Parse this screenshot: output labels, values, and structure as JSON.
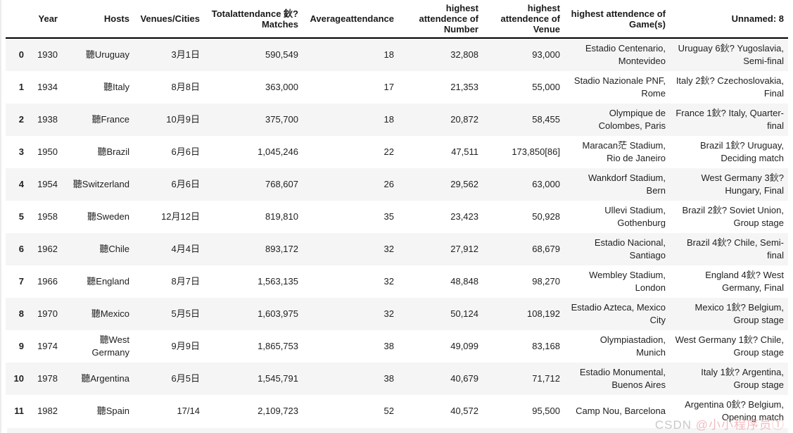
{
  "table": {
    "column_keys": [
      "index",
      "year",
      "hosts",
      "venues_cities",
      "total_attendance",
      "average_attendance",
      "highest_number",
      "highest_venue_attendance",
      "highest_venue",
      "game"
    ],
    "columns": [
      {
        "label": ""
      },
      {
        "label": "Year"
      },
      {
        "label": "Hosts"
      },
      {
        "label": "Venues/Cities"
      },
      {
        "label": "Totalattendance 鈥?Matches"
      },
      {
        "label": "Averageattendance"
      },
      {
        "label": "highest attendence of Number"
      },
      {
        "label": "highest attendence of Venue"
      },
      {
        "label": "highest attendence of Game(s)"
      },
      {
        "label": "Unnamed: 8"
      }
    ],
    "rows": [
      {
        "index": "0",
        "year": "1930",
        "hosts": "聽Uruguay",
        "venues_cities": "3月1日",
        "total_attendance": "590,549",
        "average_attendance": "18",
        "highest_number": "32,808",
        "highest_venue_attendance": "93,000",
        "highest_venue": "Estadio Centenario, Montevideo",
        "game": "Uruguay 6鈥? Yugoslavia, Semi-final"
      },
      {
        "index": "1",
        "year": "1934",
        "hosts": "聽Italy",
        "venues_cities": "8月8日",
        "total_attendance": "363,000",
        "average_attendance": "17",
        "highest_number": "21,353",
        "highest_venue_attendance": "55,000",
        "highest_venue": "Stadio Nazionale PNF, Rome",
        "game": "Italy 2鈥? Czechoslovakia, Final"
      },
      {
        "index": "2",
        "year": "1938",
        "hosts": "聽France",
        "venues_cities": "10月9日",
        "total_attendance": "375,700",
        "average_attendance": "18",
        "highest_number": "20,872",
        "highest_venue_attendance": "58,455",
        "highest_venue": "Olympique de Colombes, Paris",
        "game": "France 1鈥? Italy, Quarter-final"
      },
      {
        "index": "3",
        "year": "1950",
        "hosts": "聽Brazil",
        "venues_cities": "6月6日",
        "total_attendance": "1,045,246",
        "average_attendance": "22",
        "highest_number": "47,511",
        "highest_venue_attendance": "173,850[86]",
        "highest_venue": "Maracan茫 Stadium, Rio de Janeiro",
        "game": "Brazil 1鈥? Uruguay, Deciding match"
      },
      {
        "index": "4",
        "year": "1954",
        "hosts": "聽Switzerland",
        "venues_cities": "6月6日",
        "total_attendance": "768,607",
        "average_attendance": "26",
        "highest_number": "29,562",
        "highest_venue_attendance": "63,000",
        "highest_venue": "Wankdorf Stadium, Bern",
        "game": "West Germany 3鈥? Hungary, Final"
      },
      {
        "index": "5",
        "year": "1958",
        "hosts": "聽Sweden",
        "venues_cities": "12月12日",
        "total_attendance": "819,810",
        "average_attendance": "35",
        "highest_number": "23,423",
        "highest_venue_attendance": "50,928",
        "highest_venue": "Ullevi Stadium, Gothenburg",
        "game": "Brazil 2鈥? Soviet Union, Group stage"
      },
      {
        "index": "6",
        "year": "1962",
        "hosts": "聽Chile",
        "venues_cities": "4月4日",
        "total_attendance": "893,172",
        "average_attendance": "32",
        "highest_number": "27,912",
        "highest_venue_attendance": "68,679",
        "highest_venue": "Estadio Nacional, Santiago",
        "game": "Brazil 4鈥? Chile, Semi-final"
      },
      {
        "index": "7",
        "year": "1966",
        "hosts": "聽England",
        "venues_cities": "8月7日",
        "total_attendance": "1,563,135",
        "average_attendance": "32",
        "highest_number": "48,848",
        "highest_venue_attendance": "98,270",
        "highest_venue": "Wembley Stadium, London",
        "game": "England 4鈥? West Germany, Final"
      },
      {
        "index": "8",
        "year": "1970",
        "hosts": "聽Mexico",
        "venues_cities": "5月5日",
        "total_attendance": "1,603,975",
        "average_attendance": "32",
        "highest_number": "50,124",
        "highest_venue_attendance": "108,192",
        "highest_venue": "Estadio Azteca, Mexico City",
        "game": "Mexico 1鈥? Belgium, Group stage"
      },
      {
        "index": "9",
        "year": "1974",
        "hosts": "聽West Germany",
        "venues_cities": "9月9日",
        "total_attendance": "1,865,753",
        "average_attendance": "38",
        "highest_number": "49,099",
        "highest_venue_attendance": "83,168",
        "highest_venue": "Olympiastadion, Munich",
        "game": "West Germany 1鈥? Chile, Group stage"
      },
      {
        "index": "10",
        "year": "1978",
        "hosts": "聽Argentina",
        "venues_cities": "6月5日",
        "total_attendance": "1,545,791",
        "average_attendance": "38",
        "highest_number": "40,679",
        "highest_venue_attendance": "71,712",
        "highest_venue": "Estadio Monumental, Buenos Aires",
        "game": "Italy 1鈥? Argentina, Group stage"
      },
      {
        "index": "11",
        "year": "1982",
        "hosts": "聽Spain",
        "venues_cities": "17/14",
        "total_attendance": "2,109,723",
        "average_attendance": "52",
        "highest_number": "40,572",
        "highest_venue_attendance": "95,500",
        "highest_venue": "Camp Nou, Barcelona",
        "game": "Argentina 0鈥? Belgium, Opening match"
      }
    ]
  },
  "watermark": {
    "brand": "CSDN ",
    "handle": "@小小程序员①"
  },
  "colors": {
    "stripe": "#f5f5f5",
    "header_border": "#000000",
    "text": "#212121",
    "watermark_gray": "#c9c9c9",
    "watermark_pink": "#eeb0b4"
  }
}
